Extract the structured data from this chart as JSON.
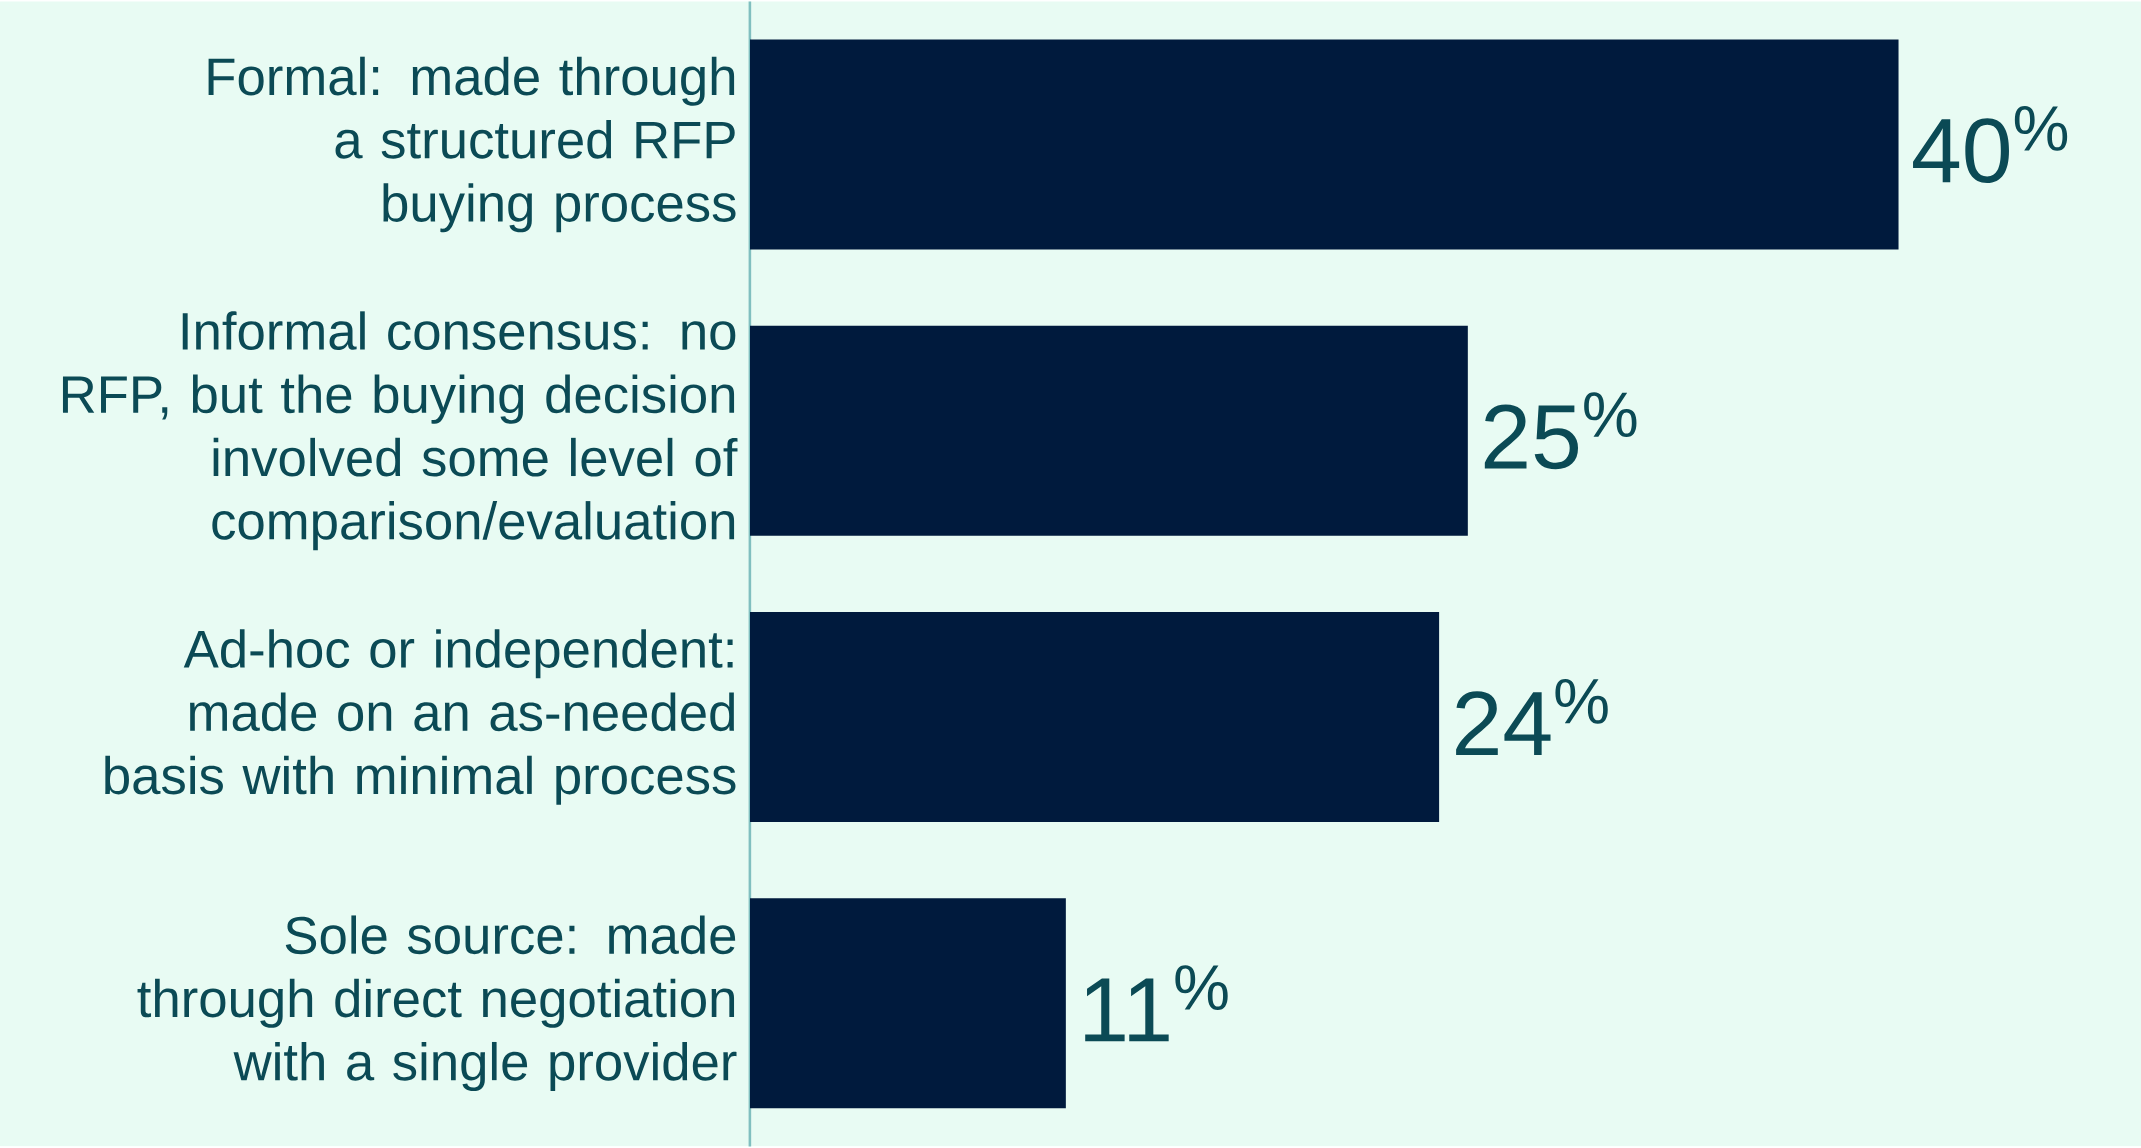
{
  "chart_data": {
    "type": "bar",
    "orientation": "horizontal",
    "categories": [
      "Formal: made through a structured RFP buying process",
      "Informal consensus: no RFP, but the buying decision involved some level of comparison/evaluation",
      "Ad-hoc or independent: made on an as-needed basis with minimal process",
      "Sole source: made through direct negotiation with a single provider"
    ],
    "values": [
      40,
      25,
      24,
      11
    ],
    "value_labels": [
      "40$^{%}$",
      "25$^{%}$",
      "24$^{%}$",
      "11$^{%}$"
    ],
    "color": "#001a3d"
  }
}
